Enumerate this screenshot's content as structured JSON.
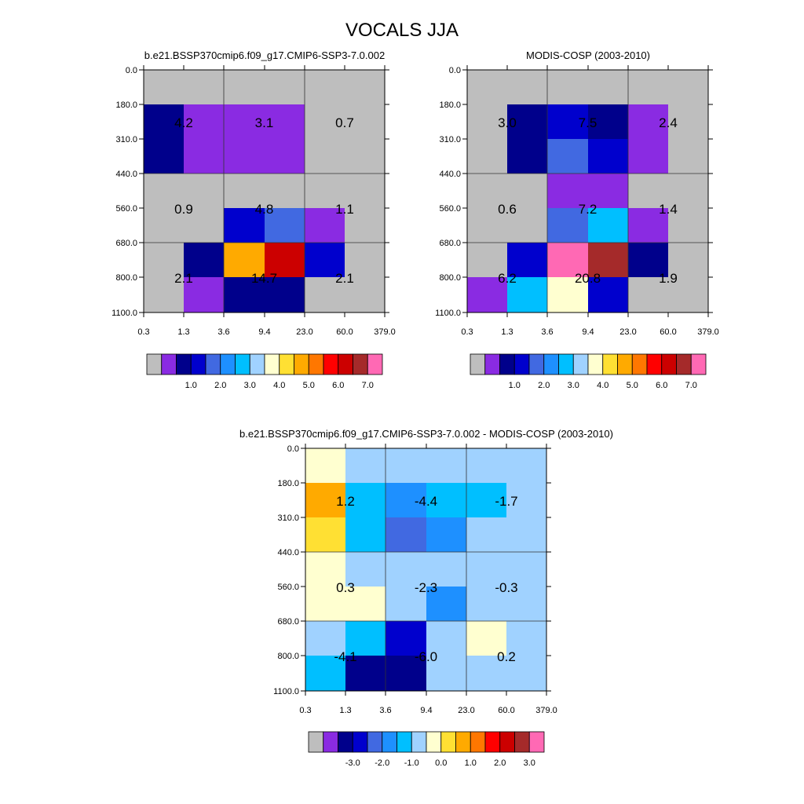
{
  "title": "VOCALS JJA",
  "chart_data": [
    {
      "type": "heatmap",
      "title": "b.e21.BSSP370cmip6.f09_g17.CMIP6-SSP3-7.0.002",
      "x_ticks": [
        "0.3",
        "1.3",
        "3.6",
        "9.4",
        "23.0",
        "60.0",
        "379.0"
      ],
      "y_ticks": [
        "0.0",
        "180.0",
        "310.0",
        "440.0",
        "560.0",
        "680.0",
        "800.0",
        "1100.0"
      ],
      "cells": [
        [
          "gray",
          "gray",
          "gray",
          "gray",
          "gray",
          "gray"
        ],
        [
          "navy",
          "purple",
          "purple",
          "purple",
          "gray",
          "gray"
        ],
        [
          "navy",
          "purple",
          "purple",
          "purple",
          "gray",
          "gray"
        ],
        [
          "gray",
          "gray",
          "gray",
          "gray",
          "gray",
          "gray"
        ],
        [
          "gray",
          "gray",
          "blue",
          "royal",
          "purple",
          "gray"
        ],
        [
          "gray",
          "navy",
          "orange",
          "darkred",
          "blue",
          "gray"
        ],
        [
          "gray",
          "purple",
          "navy",
          "navy",
          "gray",
          "gray"
        ]
      ],
      "box_labels": [
        [
          "4.2",
          "3.1",
          "0.7"
        ],
        [
          "0.9",
          "4.8",
          "1.1"
        ],
        [
          "2.1",
          "14.7",
          "2.1"
        ]
      ],
      "legend": {
        "colors": [
          "#bebebe",
          "#8a2be2",
          "#00008b",
          "#0000cd",
          "#4169e1",
          "#1e90ff",
          "#00bfff",
          "#a0d2ff",
          "#ffffd0",
          "#ffe033",
          "#ffaa00",
          "#ff7700",
          "#ff0000",
          "#cc0000",
          "#a52a2a",
          "#ff69b4"
        ],
        "labels": [
          "1.0",
          "2.0",
          "3.0",
          "4.0",
          "5.0",
          "6.0",
          "7.0"
        ]
      }
    },
    {
      "type": "heatmap",
      "title": "MODIS-COSP (2003-2010)",
      "x_ticks": [
        "0.3",
        "1.3",
        "3.6",
        "9.4",
        "23.0",
        "60.0",
        "379.0"
      ],
      "y_ticks": [
        "0.0",
        "180.0",
        "310.0",
        "440.0",
        "560.0",
        "680.0",
        "800.0",
        "1100.0"
      ],
      "cells": [
        [
          "gray",
          "gray",
          "gray",
          "gray",
          "gray",
          "gray"
        ],
        [
          "gray",
          "navy",
          "blue",
          "navy",
          "purple",
          "gray"
        ],
        [
          "gray",
          "navy",
          "royal",
          "blue",
          "purple",
          "gray"
        ],
        [
          "gray",
          "gray",
          "purple",
          "purple",
          "gray",
          "gray"
        ],
        [
          "gray",
          "gray",
          "royal",
          "skyblue",
          "purple",
          "gray"
        ],
        [
          "gray",
          "blue",
          "pink",
          "brown",
          "navy",
          "gray"
        ],
        [
          "purple",
          "skyblue",
          "cream",
          "blue",
          "gray",
          "gray"
        ]
      ],
      "box_labels": [
        [
          "3.0",
          "7.5",
          "2.4"
        ],
        [
          "0.6",
          "7.2",
          "1.4"
        ],
        [
          "6.2",
          "20.8",
          "1.9"
        ]
      ],
      "legend": {
        "colors": [
          "#bebebe",
          "#8a2be2",
          "#00008b",
          "#0000cd",
          "#4169e1",
          "#1e90ff",
          "#00bfff",
          "#a0d2ff",
          "#ffffd0",
          "#ffe033",
          "#ffaa00",
          "#ff7700",
          "#ff0000",
          "#cc0000",
          "#a52a2a",
          "#ff69b4"
        ],
        "labels": [
          "1.0",
          "2.0",
          "3.0",
          "4.0",
          "5.0",
          "6.0",
          "7.0"
        ]
      }
    },
    {
      "type": "heatmap",
      "title": "b.e21.BSSP370cmip6.f09_g17.CMIP6-SSP3-7.0.002 - MODIS-COSP (2003-2010)",
      "x_ticks": [
        "0.3",
        "1.3",
        "3.6",
        "9.4",
        "23.0",
        "60.0",
        "379.0"
      ],
      "y_ticks": [
        "0.0",
        "180.0",
        "310.0",
        "440.0",
        "560.0",
        "680.0",
        "800.0",
        "1100.0"
      ],
      "cells": [
        [
          "cream",
          "lightblue",
          "lightblue",
          "lightblue",
          "lightblue",
          "lightblue"
        ],
        [
          "orange",
          "skyblue",
          "dodger",
          "skyblue",
          "skyblue",
          "lightblue"
        ],
        [
          "yellow",
          "skyblue",
          "royal",
          "dodger",
          "lightblue",
          "lightblue"
        ],
        [
          "cream",
          "lightblue",
          "lightblue",
          "lightblue",
          "lightblue",
          "lightblue"
        ],
        [
          "cream",
          "cream",
          "lightblue",
          "dodger",
          "lightblue",
          "lightblue"
        ],
        [
          "lightblue",
          "skyblue",
          "blue",
          "lightblue",
          "cream",
          "lightblue"
        ],
        [
          "skyblue",
          "navy",
          "navy",
          "lightblue",
          "lightblue",
          "lightblue"
        ]
      ],
      "box_labels": [
        [
          "1.2",
          "-4.4",
          "-1.7"
        ],
        [
          "0.3",
          "-2.3",
          "-0.3"
        ],
        [
          "-4.1",
          "-6.0",
          "0.2"
        ]
      ],
      "legend": {
        "colors": [
          "#bebebe",
          "#8a2be2",
          "#00008b",
          "#0000cd",
          "#4169e1",
          "#1e90ff",
          "#00bfff",
          "#a0d2ff",
          "#ffffd0",
          "#ffe033",
          "#ffaa00",
          "#ff7700",
          "#ff0000",
          "#cc0000",
          "#a52a2a",
          "#ff69b4"
        ],
        "labels": [
          "-3.0",
          "-2.0",
          "-1.0",
          "0.0",
          "1.0",
          "2.0",
          "3.0"
        ]
      }
    }
  ],
  "palette": {
    "gray": "#bebebe",
    "purple": "#8a2be2",
    "navy": "#00008b",
    "blue": "#0000cd",
    "royal": "#4169e1",
    "dodger": "#1e90ff",
    "skyblue": "#00bfff",
    "lightblue": "#a0d2ff",
    "cream": "#ffffd0",
    "yellow": "#ffe033",
    "orange": "#ffaa00",
    "darkred": "#cc0000",
    "brown": "#a52a2a",
    "pink": "#ff69b4"
  }
}
